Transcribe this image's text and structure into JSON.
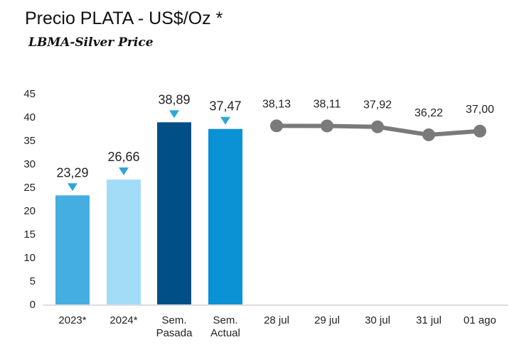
{
  "chart_data": {
    "type": "bar+line",
    "title": "Precio PLATA - US$/Oz *",
    "subtitle": "LBMA-Silver Price",
    "ylim": [
      0,
      45
    ],
    "yticks": [
      0,
      5,
      10,
      15,
      20,
      25,
      30,
      35,
      40,
      45
    ],
    "categories": [
      [
        "2023*"
      ],
      [
        "2024*"
      ],
      [
        "Sem.",
        "Pasada"
      ],
      [
        "Sem.",
        "Actual"
      ],
      [
        "28 jul"
      ],
      [
        "29 jul"
      ],
      [
        "30 jul"
      ],
      [
        "31 jul"
      ],
      [
        "01 ago"
      ]
    ],
    "bars": {
      "values": [
        23.29,
        26.66,
        38.89,
        37.47
      ],
      "labels": [
        "23,29",
        "26,66",
        "38,89",
        "37,47"
      ],
      "colors": [
        "#45aee0",
        "#a3dcf7",
        "#004f86",
        "#0a92d4"
      ]
    },
    "line": {
      "values": [
        38.13,
        38.11,
        37.92,
        36.22,
        37.0
      ],
      "labels": [
        "38,13",
        "38,11",
        "37,92",
        "36,22",
        "37,00"
      ],
      "color": "#7a7a7a"
    },
    "marker_color": "#2fa7d6"
  }
}
